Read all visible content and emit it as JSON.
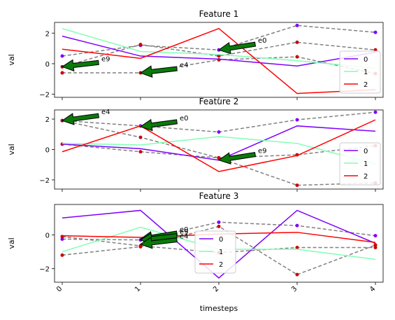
{
  "chart_data": {
    "type": "line",
    "xlabel": "timesteps",
    "x": [
      0,
      1,
      2,
      3,
      4
    ],
    "x_tick_labels": [
      "0",
      "1",
      "2",
      "3",
      "4"
    ],
    "grid": false,
    "legend_placement": "right",
    "series_colors": {
      "0": "#7f00ff",
      "1": "#80ffb4",
      "2": "#ff0000"
    },
    "dashed_color": "#808080",
    "arrow_color": "#0a7a0a",
    "panels": [
      {
        "title": "Feature 1",
        "ylabel": "val",
        "ylim": [
          -2.2,
          2.7
        ],
        "yticks": [
          -2,
          0,
          2
        ],
        "y_tick_labels": [
          "−2",
          "0",
          "2"
        ],
        "legend": [
          "0",
          "1",
          "2"
        ],
        "series": [
          {
            "name": "0",
            "values": [
              1.8,
              0.5,
              0.3,
              -0.15,
              0.75
            ]
          },
          {
            "name": "1",
            "values": [
              2.3,
              0.8,
              0.6,
              0.2,
              -0.3
            ]
          },
          {
            "name": "2",
            "values": [
              0.95,
              0.35,
              2.3,
              -1.95,
              -1.7
            ]
          }
        ],
        "dashed": [
          {
            "values": [
              0.5,
              1.2,
              0.9,
              2.5,
              2.05
            ],
            "marker_color": "#7f00ff"
          },
          {
            "values": [
              -0.2,
              1.25,
              0.5,
              1.4,
              0.9
            ],
            "marker_color": "#cc0000"
          },
          {
            "values": [
              -0.6,
              -0.6,
              0.25,
              0.45,
              -0.65
            ],
            "marker_color": "#cc0000"
          }
        ],
        "annotations": [
          {
            "label": "e9",
            "target": [
              0,
              -0.2
            ],
            "text_at": [
              0.5,
              0.35
            ]
          },
          {
            "label": "e4",
            "target": [
              1,
              -0.6
            ],
            "text_at": [
              1.5,
              -0.05
            ]
          },
          {
            "label": "e0",
            "target": [
              2,
              0.9
            ],
            "text_at": [
              2.5,
              1.55
            ]
          }
        ]
      },
      {
        "title": "Feature 2",
        "ylabel": "val",
        "ylim": [
          -2.6,
          2.6
        ],
        "yticks": [
          -2,
          0,
          2
        ],
        "y_tick_labels": [
          "−2",
          "0",
          "2"
        ],
        "legend": [
          "0",
          "1",
          "2"
        ],
        "series": [
          {
            "name": "0",
            "values": [
              0.35,
              0.05,
              -0.7,
              1.55,
              1.2
            ]
          },
          {
            "name": "1",
            "values": [
              0.4,
              0.3,
              0.85,
              0.4,
              -0.95
            ]
          },
          {
            "name": "2",
            "values": [
              -0.15,
              1.55,
              -1.45,
              -0.4,
              1.95
            ]
          }
        ],
        "dashed": [
          {
            "values": [
              1.9,
              1.55,
              1.15,
              1.95,
              2.45
            ],
            "marker_color": "#7f00ff"
          },
          {
            "values": [
              1.9,
              0.8,
              -0.55,
              -0.35,
              0.25
            ],
            "marker_color": "#cc0000"
          },
          {
            "values": [
              0.35,
              -0.15,
              -0.55,
              -2.35,
              -2.2
            ],
            "marker_color": "#cc0000"
          }
        ],
        "annotations": [
          {
            "label": "e4",
            "target": [
              0,
              1.9
            ],
            "text_at": [
              0.5,
              2.5
            ]
          },
          {
            "label": "e0",
            "target": [
              1,
              1.5
            ],
            "text_at": [
              1.5,
              2.1
            ]
          },
          {
            "label": "e9",
            "target": [
              2,
              -0.7
            ],
            "text_at": [
              2.5,
              -0.05
            ]
          }
        ]
      },
      {
        "title": "Feature 3",
        "ylabel": "val",
        "ylim": [
          -2.8,
          1.8
        ],
        "yticks": [
          -2,
          0
        ],
        "y_tick_labels": [
          "−2",
          "0"
        ],
        "legend": [
          "0",
          "1",
          "2"
        ],
        "series": [
          {
            "name": "0",
            "values": [
              1.0,
              1.45,
              -2.55,
              1.45,
              -0.5
            ]
          },
          {
            "name": "1",
            "values": [
              -1.0,
              0.45,
              -0.85,
              -0.85,
              -1.45
            ]
          },
          {
            "name": "2",
            "values": [
              -0.05,
              -0.15,
              0.05,
              0.15,
              -0.45
            ]
          }
        ],
        "dashed": [
          {
            "values": [
              -0.25,
              -0.3,
              0.75,
              0.55,
              -0.05
            ],
            "marker_color": "#7f00ff"
          },
          {
            "values": [
              -1.2,
              -0.7,
              0.5,
              -2.35,
              -0.6
            ],
            "marker_color": "#cc0000"
          },
          {
            "values": [
              -0.1,
              -0.65,
              -1.05,
              -0.75,
              -0.75
            ],
            "marker_color": "#cc0000"
          }
        ],
        "annotations": [
          {
            "label": "e0",
            "target": [
              1,
              -0.25
            ],
            "text_at": [
              1.5,
              0.35
            ]
          },
          {
            "label": "e9",
            "target": [
              1,
              -0.3
            ],
            "text_at": [
              1.5,
              0.2
            ]
          },
          {
            "label": "e4",
            "target": [
              1,
              -0.55
            ],
            "text_at": [
              1.5,
              -0.05
            ]
          }
        ]
      }
    ]
  }
}
